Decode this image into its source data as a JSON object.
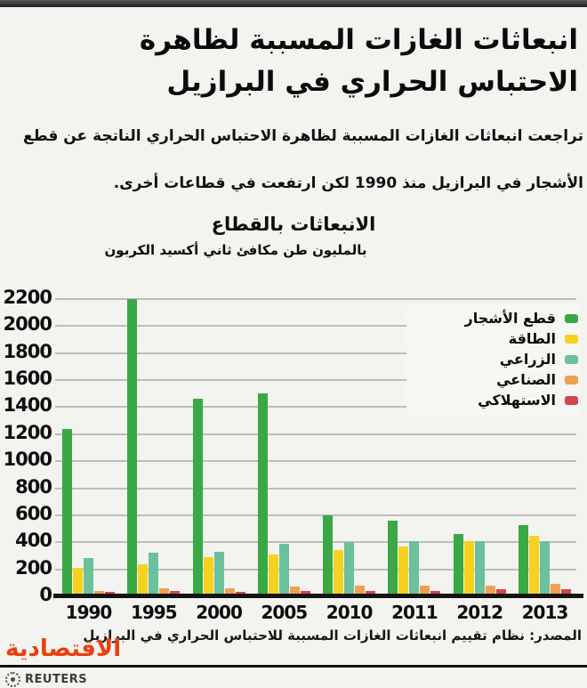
{
  "header": {
    "title_line1": "انبعاثات الغازات المسببة لظاهرة",
    "title_line2": "الاحتباس الحراري في البرازيل",
    "subtitle_line1": "تراجعت انبعاثات الغازات المسببة لظاهرة الاحتباس الحراري الناتجة عن قطع",
    "subtitle_line2": "الأشجار في البرازيل منذ 1990 لكن ارتفعت في قطاعات أخرى."
  },
  "chart_data": {
    "type": "bar",
    "title": "الانبعاثات بالقطاع",
    "unit_label": "بالمليون طن مكافئ ثاني أكسيد الكربون",
    "categories": [
      "1990",
      "1995",
      "2000",
      "2005",
      "2010",
      "2011",
      "2012",
      "2013"
    ],
    "series": [
      {
        "name": "قطع الأشجار",
        "color": "#3aa845",
        "values": [
          1240,
          2200,
          1460,
          1500,
          600,
          560,
          460,
          530
        ]
      },
      {
        "name": "الطاقة",
        "color": "#f6d11f",
        "values": [
          210,
          240,
          290,
          310,
          340,
          370,
          410,
          450
        ]
      },
      {
        "name": "الزراعي",
        "color": "#6ac19b",
        "values": [
          280,
          320,
          330,
          390,
          400,
          410,
          410,
          410
        ]
      },
      {
        "name": "الصناعي",
        "color": "#efa153",
        "values": [
          40,
          60,
          60,
          70,
          80,
          80,
          80,
          90
        ]
      },
      {
        "name": "الاستهلاكي",
        "color": "#d4464b",
        "values": [
          30,
          40,
          30,
          40,
          40,
          40,
          50,
          50
        ]
      }
    ],
    "ylim": [
      0,
      2200
    ],
    "ytick_step": 200,
    "grid": true,
    "legend_position": "upper-right"
  },
  "footer": {
    "source": "المصدر: نظام تقييم انبعاثات الغازات المسببة للاحتباس الحراري في البرازيل",
    "brand_logo": "الاقتصادية",
    "brand_color": "#e8400f",
    "agency": "REUTERS"
  }
}
